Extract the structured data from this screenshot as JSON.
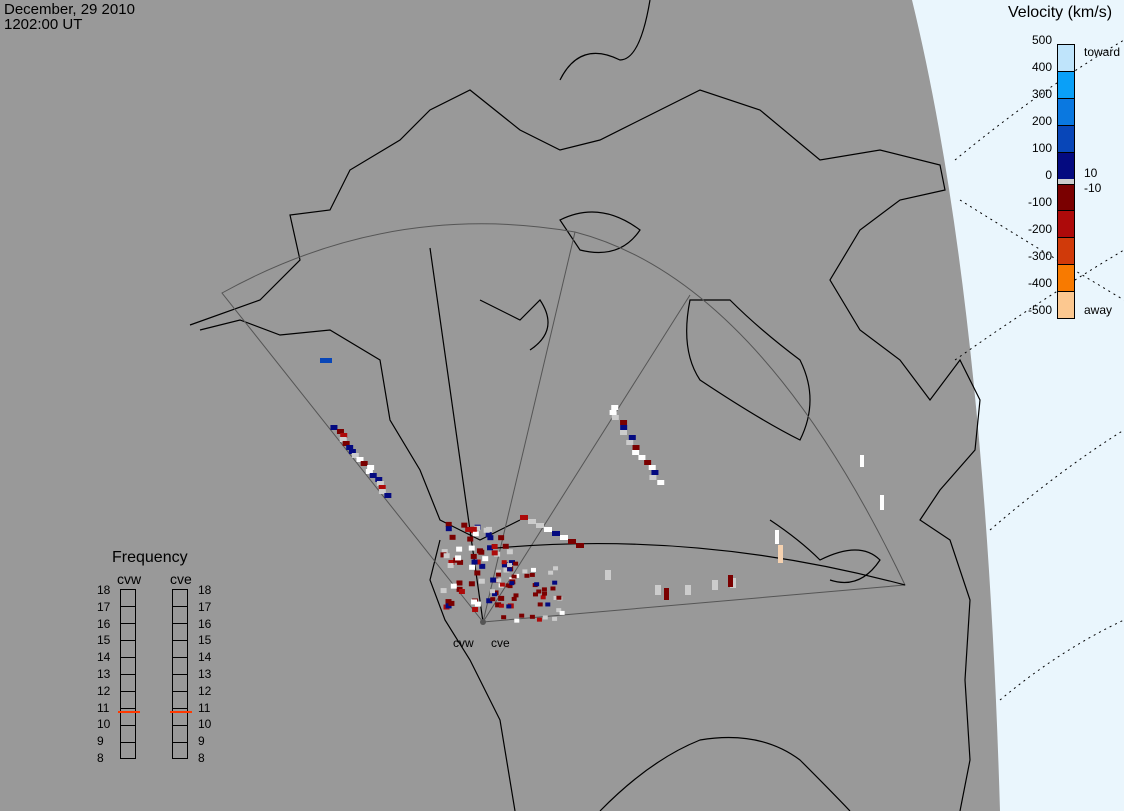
{
  "header": {
    "date": "December, 29 2010",
    "time": "1202:00 UT"
  },
  "colorbar": {
    "title": "Velocity (km/s)",
    "ticks": [
      "500",
      "400",
      "300",
      "200",
      "100",
      "0",
      "-100",
      "-200",
      "-300",
      "-400",
      "-500"
    ],
    "toward_label": "toward",
    "away_label": "away",
    "plus_label": "10",
    "minus_label": "-10",
    "colors": [
      "#bfe4fb",
      "#0aa0f8",
      "#0a78e0",
      "#0846b8",
      "#040a80",
      "#7a0000",
      "#ad0a0a",
      "#d03a0a",
      "#f87a00",
      "#fcc890"
    ]
  },
  "frequency": {
    "title": "Frequency",
    "unit_ticks": [
      "18",
      "17",
      "16",
      "15",
      "14",
      "13",
      "12",
      "11",
      "10",
      "9",
      "8"
    ],
    "radars": [
      {
        "name": "cvw",
        "value_mhz": 10.8
      },
      {
        "name": "cve",
        "value_mhz": 10.8
      }
    ]
  },
  "sites": {
    "west": "cvw",
    "east": "cve"
  },
  "colors": {
    "background": "#999999",
    "daylight": "#eaf6fd",
    "ground_scatter": "#cccccc"
  }
}
